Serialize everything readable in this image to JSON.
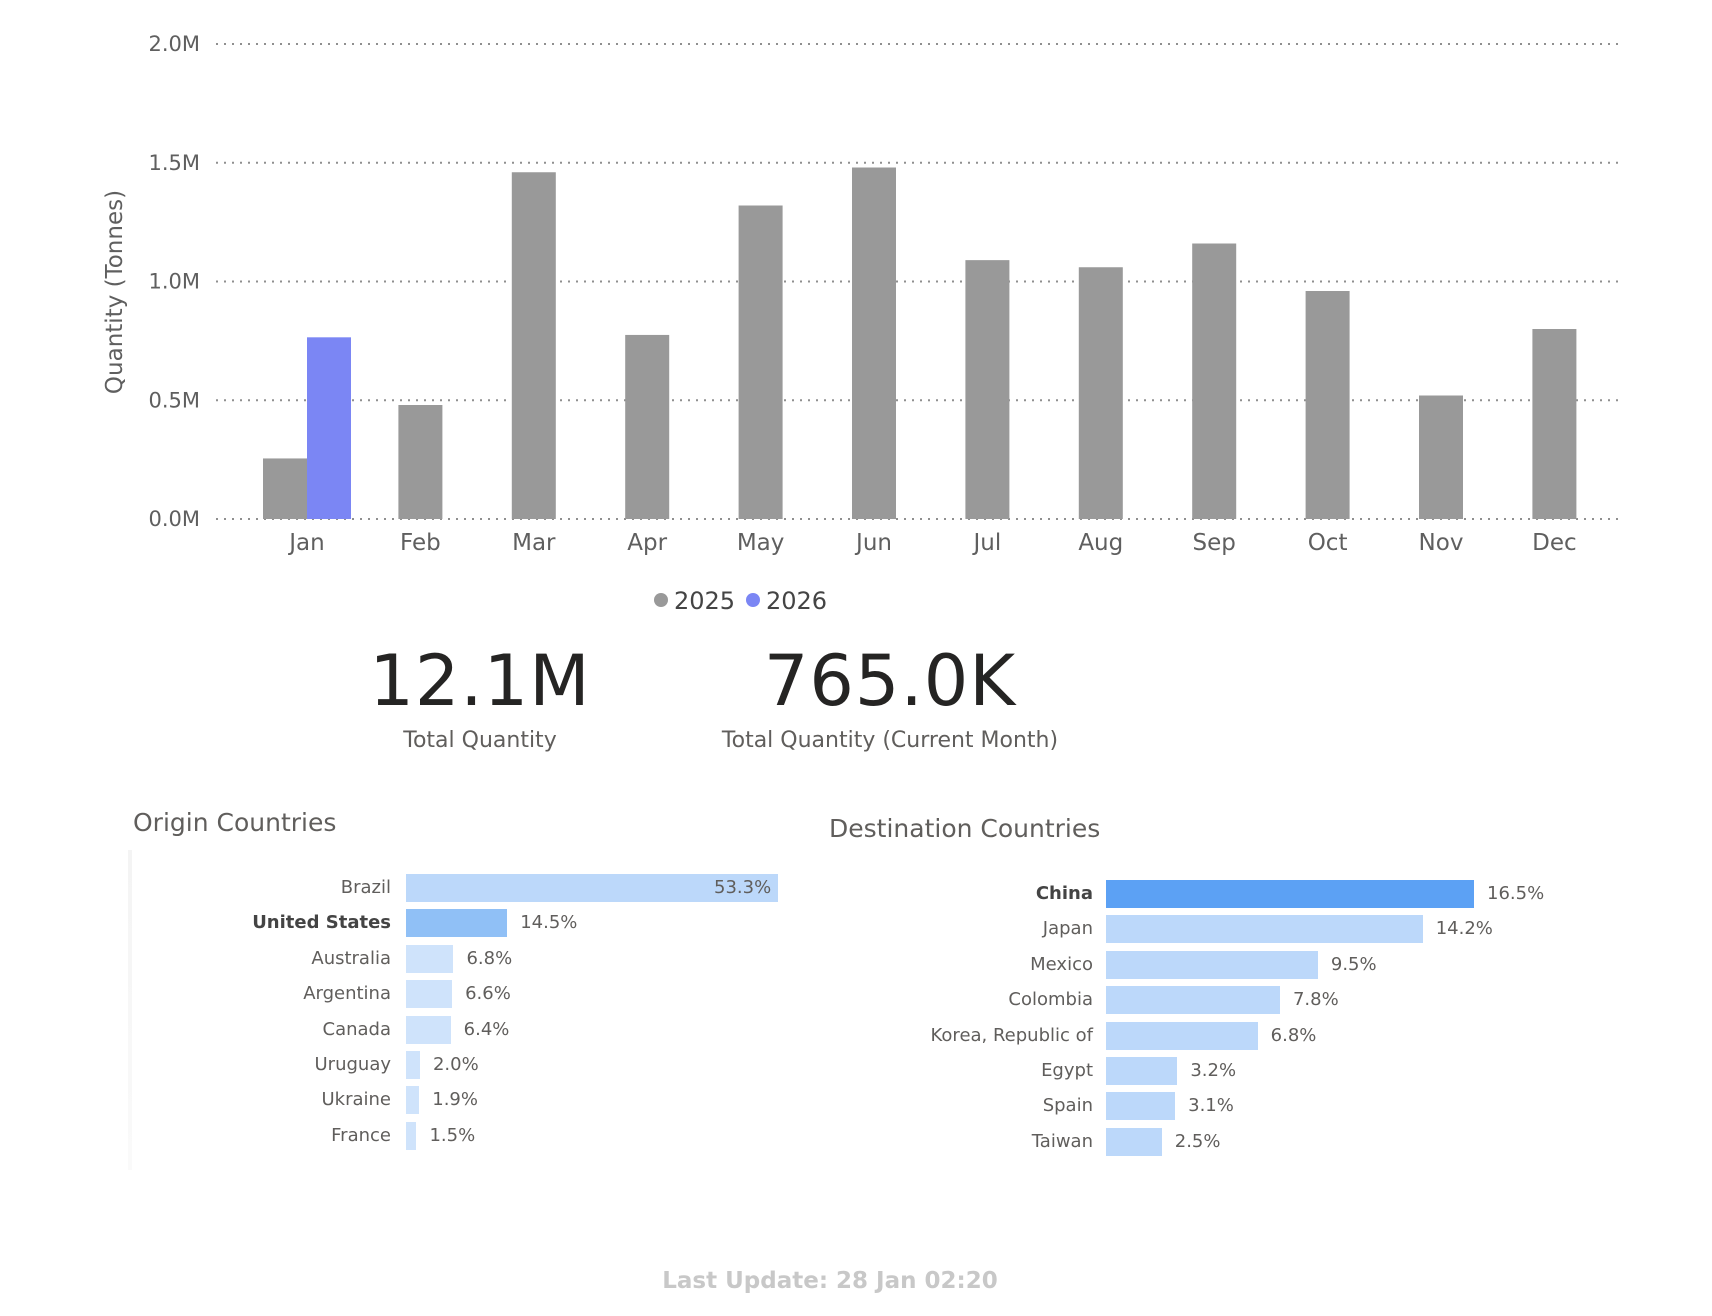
{
  "chart_data": [
    {
      "type": "bar",
      "ylabel": "Quantity (Tonnes)",
      "xlabel": "",
      "ylim": [
        0,
        2000000
      ],
      "yticks": [
        0,
        500000,
        1000000,
        1500000,
        2000000
      ],
      "ytick_labels": [
        "0.0M",
        "0.5M",
        "1.0M",
        "1.5M",
        "2.0M"
      ],
      "categories": [
        "Jan",
        "Feb",
        "Mar",
        "Apr",
        "May",
        "Jun",
        "Jul",
        "Aug",
        "Sep",
        "Oct",
        "Nov",
        "Dec"
      ],
      "series": [
        {
          "name": "2025",
          "color": "#999999",
          "values": [
            255000,
            480000,
            1460000,
            775000,
            1320000,
            1480000,
            1090000,
            1060000,
            1160000,
            960000,
            520000,
            800000
          ]
        },
        {
          "name": "2026",
          "color": "#7b86f4",
          "values": [
            765000,
            null,
            null,
            null,
            null,
            null,
            null,
            null,
            null,
            null,
            null,
            null
          ]
        }
      ],
      "grid": true,
      "legend": "bottom-center"
    },
    {
      "type": "bar",
      "orientation": "horizontal",
      "title": "Origin Countries",
      "categories": [
        "Brazil",
        "United States",
        "Australia",
        "Argentina",
        "Canada",
        "Uruguay",
        "Ukraine",
        "France"
      ],
      "values": [
        53.3,
        14.5,
        6.8,
        6.6,
        6.4,
        2.0,
        1.9,
        1.5
      ],
      "labels": [
        "53.3%",
        "14.5%",
        "6.8%",
        "6.6%",
        "6.4%",
        "2.0%",
        "1.9%",
        "1.5%"
      ],
      "highlight": "United States",
      "unit": "%"
    },
    {
      "type": "bar",
      "orientation": "horizontal",
      "title": "Destination Countries",
      "categories": [
        "China",
        "Japan",
        "Mexico",
        "Colombia",
        "Korea, Republic of",
        "Egypt",
        "Spain",
        "Taiwan"
      ],
      "values": [
        16.5,
        14.2,
        9.5,
        7.8,
        6.8,
        3.2,
        3.1,
        2.5
      ],
      "labels": [
        "16.5%",
        "14.2%",
        "9.5%",
        "7.8%",
        "6.8%",
        "3.2%",
        "3.1%",
        "2.5%"
      ],
      "highlight": "China",
      "unit": "%"
    }
  ],
  "kpis": {
    "total": {
      "value": "12.1M",
      "label": "Total Quantity"
    },
    "current_month": {
      "value": "765.0K",
      "label": "Total Quantity (Current Month)"
    }
  },
  "origin": {
    "title": "Origin Countries"
  },
  "destination": {
    "title": "Destination Countries"
  },
  "footer": {
    "last_update": "Last Update: 28 Jan 02:20"
  },
  "colors": {
    "bar_2025": "#999999",
    "bar_2026": "#7b86f4",
    "hbar_light": "#cfe3fb",
    "hbar_medium": "#bcd8fa",
    "hbar_highlight_origin": "#90c0f6",
    "hbar_highlight_dest": "#5ca1f4"
  }
}
